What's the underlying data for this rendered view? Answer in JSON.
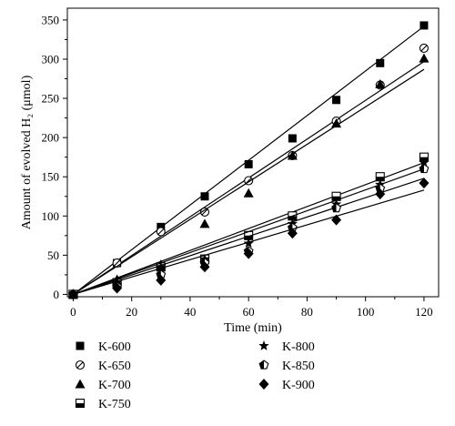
{
  "chart_data": {
    "type": "scatter",
    "xlabel": "Time (min)",
    "ylabel": "Amount of evolved H₂ (μmol)",
    "xlim": [
      -2,
      125
    ],
    "ylim": [
      -3,
      365
    ],
    "xticks": [
      0,
      20,
      40,
      60,
      80,
      100,
      120
    ],
    "yticks": [
      0,
      50,
      100,
      150,
      200,
      250,
      300,
      350
    ],
    "grid": false,
    "legend_position": "bottom",
    "x": [
      0,
      15,
      30,
      45,
      60,
      75,
      90,
      105,
      120
    ],
    "series": [
      {
        "name": "K-600",
        "marker": "square-filled",
        "values": [
          0,
          40,
          86,
          125,
          166,
          199,
          248,
          295,
          343
        ],
        "fit": [
          0,
          342
        ]
      },
      {
        "name": "K-650",
        "marker": "circle-half",
        "values": [
          0,
          40,
          80,
          105,
          145,
          177,
          221,
          267,
          314
        ],
        "fit": [
          0,
          297
        ]
      },
      {
        "name": "K-700",
        "marker": "triangle-filled",
        "values": [
          0,
          19,
          38,
          90,
          129,
          177,
          218,
          268,
          301
        ],
        "fit": [
          0,
          287
        ]
      },
      {
        "name": "K-750",
        "marker": "square-half",
        "values": [
          0,
          15,
          35,
          45,
          75,
          100,
          125,
          150,
          175
        ],
        "fit": [
          0,
          168
        ]
      },
      {
        "name": "K-800",
        "marker": "star",
        "values": [
          0,
          15,
          35,
          45,
          65,
          90,
          115,
          140,
          168
        ],
        "fit": [
          0,
          160
        ]
      },
      {
        "name": "K-850",
        "marker": "pentagon-half",
        "values": [
          0,
          10,
          25,
          40,
          55,
          85,
          110,
          135,
          160
        ],
        "fit": [
          0,
          148
        ]
      },
      {
        "name": "K-900",
        "marker": "diamond-filled",
        "values": [
          0,
          8,
          18,
          35,
          52,
          78,
          95,
          128,
          142
        ],
        "fit": [
          0,
          133
        ]
      }
    ]
  }
}
